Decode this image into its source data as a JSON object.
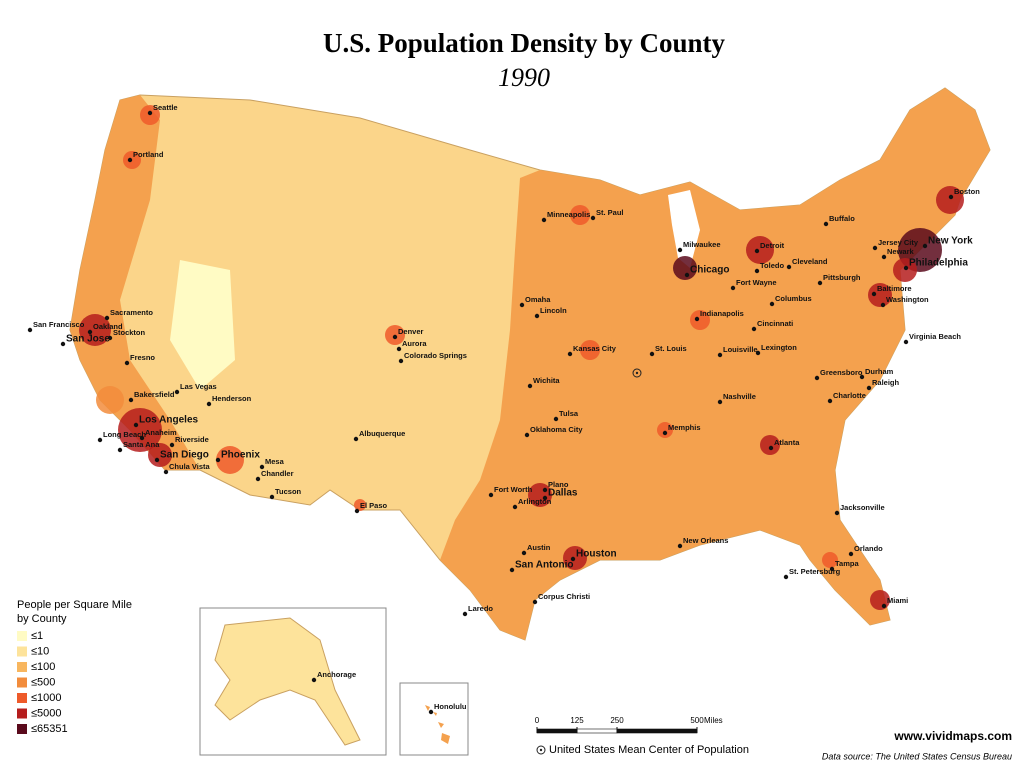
{
  "title": "U.S. Population Density by County",
  "subtitle": "1990",
  "legend": {
    "title": [
      "People per Square Mile",
      "by County"
    ],
    "items": [
      {
        "label": "≤1",
        "color": "#fffbc4"
      },
      {
        "label": "≤10",
        "color": "#fde39b"
      },
      {
        "label": "≤100",
        "color": "#f8b65e"
      },
      {
        "label": "≤500",
        "color": "#f28c3c"
      },
      {
        "label": "≤1000",
        "color": "#ee5a2a"
      },
      {
        "label": "≤5000",
        "color": "#b51d1d"
      },
      {
        "label": "≤65351",
        "color": "#5a0a1c"
      }
    ]
  },
  "cities": [
    "Seattle",
    "Portland",
    "Sacramento",
    "San Francisco",
    "Oakland",
    "Stockton",
    "San Jose",
    "Fresno",
    "Bakersfield",
    "Las Vegas",
    "Henderson",
    "Los Angeles",
    "Anaheim",
    "Long Beach",
    "Riverside",
    "Santa Ana",
    "San Diego",
    "Chula Vista",
    "Phoenix",
    "Mesa",
    "Chandler",
    "Tucson",
    "Denver",
    "Aurora",
    "Colorado Springs",
    "Albuquerque",
    "El Paso",
    "Minneapolis",
    "St. Paul",
    "Omaha",
    "Lincoln",
    "Kansas City",
    "St. Louis",
    "Wichita",
    "Tulsa",
    "Oklahoma City",
    "Fort Worth",
    "Plano",
    "Dallas",
    "Arlington",
    "Austin",
    "San Antonio",
    "Houston",
    "Laredo",
    "Corpus Christi",
    "New Orleans",
    "Memphis",
    "Nashville",
    "Atlanta",
    "Chicago",
    "Milwaukee",
    "Detroit",
    "Toledo",
    "Cleveland",
    "Fort Wayne",
    "Indianapolis",
    "Columbus",
    "Cincinnati",
    "Louisville",
    "Lexington",
    "Pittsburgh",
    "Buffalo",
    "Boston",
    "New York",
    "Jersey City",
    "Newark",
    "Philadelphia",
    "Baltimore",
    "Washington",
    "Virginia Beach",
    "Greensboro",
    "Durham",
    "Raleigh",
    "Charlotte",
    "Jacksonville",
    "Orlando",
    "Tampa",
    "St. Petersburg",
    "Miami",
    "Anchorage",
    "Honolulu"
  ],
  "scale": {
    "ticks": [
      0,
      125,
      250,
      500
    ],
    "unit": "Miles"
  },
  "center_note": "United States Mean Center of Population",
  "website": "www.vividmaps.com",
  "source": "Data source: The United States Census Bureau"
}
